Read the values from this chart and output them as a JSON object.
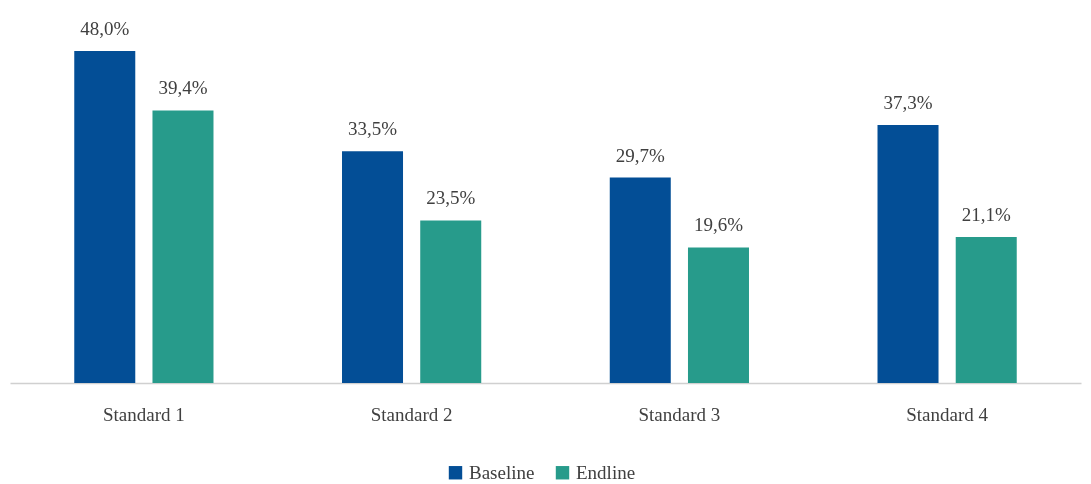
{
  "chart_data": {
    "type": "bar",
    "categories": [
      "Standard 1",
      "Standard 2",
      "Standard 3",
      "Standard 4"
    ],
    "series": [
      {
        "name": "Baseline",
        "color": "#034e96",
        "values": [
          48.0,
          33.5,
          29.7,
          37.3
        ],
        "value_labels": [
          "48,0%",
          "33,5%",
          "29,7%",
          "37,3%"
        ]
      },
      {
        "name": "Endline",
        "color": "#279b8b",
        "values": [
          39.4,
          23.5,
          19.6,
          21.1
        ],
        "value_labels": [
          "39,4%",
          "23,5%",
          "19,6%",
          "21,1%"
        ]
      }
    ],
    "legend": "bottom",
    "grid": false
  }
}
